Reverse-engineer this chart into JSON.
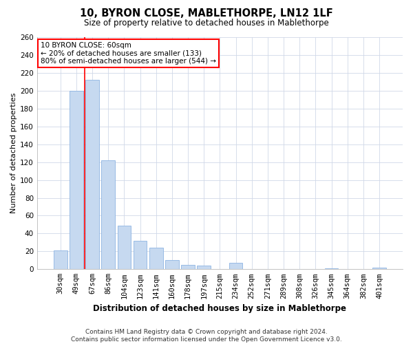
{
  "title": "10, BYRON CLOSE, MABLETHORPE, LN12 1LF",
  "subtitle": "Size of property relative to detached houses in Mablethorpe",
  "xlabel": "Distribution of detached houses by size in Mablethorpe",
  "ylabel": "Number of detached properties",
  "bar_labels": [
    "30sqm",
    "49sqm",
    "67sqm",
    "86sqm",
    "104sqm",
    "123sqm",
    "141sqm",
    "160sqm",
    "178sqm",
    "197sqm",
    "215sqm",
    "234sqm",
    "252sqm",
    "271sqm",
    "289sqm",
    "308sqm",
    "326sqm",
    "345sqm",
    "364sqm",
    "382sqm",
    "401sqm"
  ],
  "bar_values": [
    21,
    200,
    212,
    122,
    49,
    32,
    24,
    10,
    5,
    4,
    0,
    7,
    0,
    0,
    0,
    0,
    0,
    1,
    0,
    0,
    2
  ],
  "bar_color": "#c6d9f0",
  "bar_edge_color": "#8db4e2",
  "vline_color": "#ff0000",
  "vline_x_idx": 1.5,
  "ylim": [
    0,
    260
  ],
  "yticks": [
    0,
    20,
    40,
    60,
    80,
    100,
    120,
    140,
    160,
    180,
    200,
    220,
    240,
    260
  ],
  "annotation_title": "10 BYRON CLOSE: 60sqm",
  "annotation_line1": "← 20% of detached houses are smaller (133)",
  "annotation_line2": "80% of semi-detached houses are larger (544) →",
  "annotation_box_color": "white",
  "annotation_box_edge": "#ff0000",
  "footer1": "Contains HM Land Registry data © Crown copyright and database right 2024.",
  "footer2": "Contains public sector information licensed under the Open Government Licence v3.0.",
  "background_color": "#ffffff",
  "grid_color": "#d0d8e8",
  "title_fontsize": 10.5,
  "subtitle_fontsize": 8.5,
  "ylabel_fontsize": 8,
  "xlabel_fontsize": 8.5,
  "tick_fontsize": 7.5,
  "annotation_fontsize": 7.5,
  "footer_fontsize": 6.5
}
